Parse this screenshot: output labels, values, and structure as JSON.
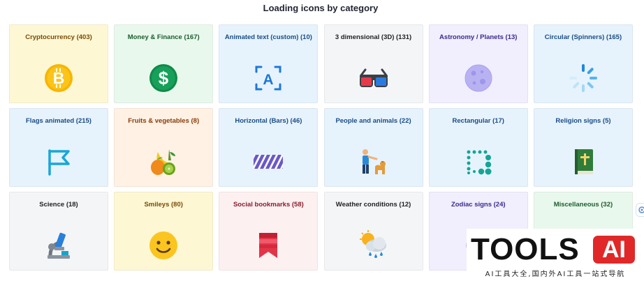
{
  "page": {
    "title": "Loading icons by category"
  },
  "cards": [
    {
      "label": "Cryptocurrency (403)",
      "bg": "#fef7d4",
      "color": "#7a4a06",
      "icon": "bitcoin-coin-icon"
    },
    {
      "label": "Money & Finance (167)",
      "bg": "#e9f8ec",
      "color": "#1b5e2e",
      "icon": "dollar-coin-icon"
    },
    {
      "label": "Animated text (custom) (10)",
      "bg": "#e6f3fd",
      "color": "#1a4c86",
      "icon": "text-scan-icon"
    },
    {
      "label": "3 dimensional (3D) (131)",
      "bg": "#f4f5f7",
      "color": "#222222",
      "icon": "3d-glasses-icon"
    },
    {
      "label": "Astronomy / Planets (13)",
      "bg": "#f1eefe",
      "color": "#3a2a8c",
      "icon": "moon-planet-icon"
    },
    {
      "label": "Circular (Spinners) (165)",
      "bg": "#e6f3fd",
      "color": "#1a4c86",
      "icon": "spinner-icon"
    },
    {
      "label": "Flags animated (215)",
      "bg": "#e6f3fd",
      "color": "#1a4c86",
      "icon": "flag-icon"
    },
    {
      "label": "Fruits & vegetables (8)",
      "bg": "#fff1e4",
      "color": "#8a3b08",
      "icon": "fruits-icon"
    },
    {
      "label": "Horizontal (Bars) (46)",
      "bg": "#e6f3fd",
      "color": "#1a4c86",
      "icon": "striped-bar-icon"
    },
    {
      "label": "People and animals (22)",
      "bg": "#e6f3fd",
      "color": "#1a4c86",
      "icon": "person-dog-icon"
    },
    {
      "label": "Rectangular (17)",
      "bg": "#e6f3fd",
      "color": "#1a4c86",
      "icon": "dot-square-icon"
    },
    {
      "label": "Religion signs (5)",
      "bg": "#e6f3fd",
      "color": "#1a4c86",
      "icon": "bible-icon"
    },
    {
      "label": "Science (18)",
      "bg": "#f4f5f7",
      "color": "#222222",
      "icon": "microscope-icon"
    },
    {
      "label": "Smileys (80)",
      "bg": "#fef7d4",
      "color": "#7a4a06",
      "icon": "smiley-icon"
    },
    {
      "label": "Social bookmarks (58)",
      "bg": "#fdf0f1",
      "color": "#8a1d28",
      "icon": "bookmark-icon"
    },
    {
      "label": "Weather conditions (12)",
      "bg": "#f4f5f7",
      "color": "#222222",
      "icon": "weather-cloud-icon"
    },
    {
      "label": "Zodiac signs (24)",
      "bg": "#f1eefe",
      "color": "#3a2a8c",
      "icon": "zodiac-icon"
    },
    {
      "label": "Miscellaneous (32)",
      "bg": "#e9f8ec",
      "color": "#1b5e2e",
      "icon": "misc-icon"
    }
  ],
  "watermark": {
    "word": "TOOLS",
    "badge": "AI",
    "subtitle": "AI工具大全,国内外AI工具一站式导航"
  }
}
